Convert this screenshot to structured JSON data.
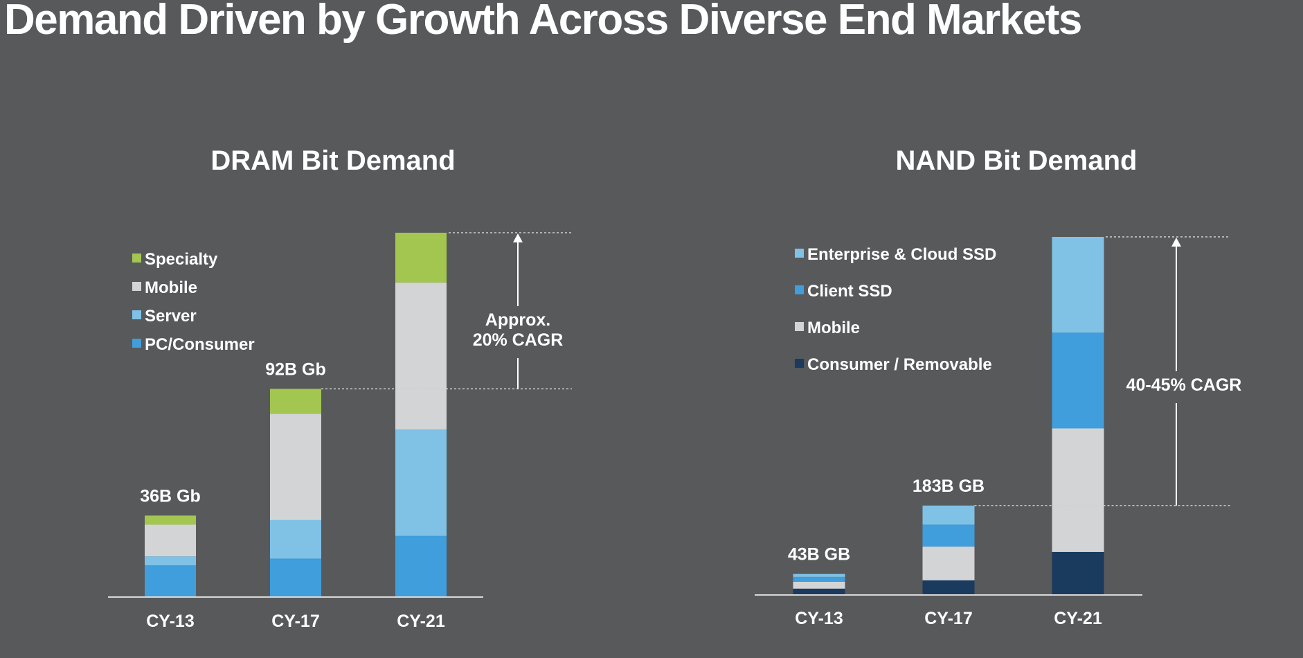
{
  "slide": {
    "title": "Demand Driven by Growth Across Diverse End Markets"
  },
  "colors": {
    "background": "#58595b",
    "specialty": "#a3c651",
    "mobile": "#d3d4d6",
    "server": "#7fc2e6",
    "pc_consumer": "#3f9edb",
    "enterprise_cloud_ssd": "#7fc2e6",
    "client_ssd": "#3f9edb",
    "consumer_removable": "#1a3a5e"
  },
  "chart_data": [
    {
      "id": "dram",
      "type": "bar",
      "stacked": true,
      "title": "DRAM Bit Demand",
      "categories": [
        "CY-13",
        "CY-17",
        "CY-21"
      ],
      "series": [
        {
          "name": "PC/Consumer",
          "color": "#3f9edb",
          "values": [
            14,
            17,
            27
          ]
        },
        {
          "name": "Server",
          "color": "#7fc2e6",
          "values": [
            4,
            17,
            47
          ]
        },
        {
          "name": "Mobile",
          "color": "#d3d4d6",
          "values": [
            14,
            47,
            65
          ]
        },
        {
          "name": "Specialty",
          "color": "#a3c651",
          "values": [
            4,
            11,
            22
          ]
        }
      ],
      "totals": [
        36,
        92,
        161
      ],
      "total_labels": [
        "36B Gb",
        "92B Gb",
        ""
      ],
      "legend": [
        "Specialty",
        "Mobile",
        "Server",
        "PC/Consumer"
      ],
      "legend_position": "top-left",
      "annotation": {
        "lines": [
          "Approx.",
          "20% CAGR"
        ],
        "from": 92,
        "to": 161
      },
      "ylim": [
        0,
        161
      ],
      "xlabel": "",
      "ylabel": "",
      "grid": false
    },
    {
      "id": "nand",
      "type": "bar",
      "stacked": true,
      "title": "NAND Bit Demand",
      "categories": [
        "CY-13",
        "CY-17",
        "CY-21"
      ],
      "series": [
        {
          "name": "Consumer / Removable",
          "color": "#1a3a5e",
          "values": [
            13,
            30,
            88
          ]
        },
        {
          "name": "Mobile",
          "color": "#d3d4d6",
          "values": [
            14,
            69,
            253
          ]
        },
        {
          "name": "Client SSD",
          "color": "#3f9edb",
          "values": [
            10,
            45,
            196
          ]
        },
        {
          "name": "Enterprise & Cloud SSD",
          "color": "#7fc2e6",
          "values": [
            6,
            39,
            196
          ]
        }
      ],
      "totals": [
        43,
        183,
        733
      ],
      "total_labels": [
        "43B GB",
        "183B GB",
        ""
      ],
      "legend": [
        "Enterprise & Cloud SSD",
        "Client SSD",
        "Mobile",
        "Consumer / Removable"
      ],
      "legend_position": "top-left",
      "annotation": {
        "lines": [
          "40-45% CAGR"
        ],
        "from": 183,
        "to": 733
      },
      "ylim": [
        0,
        733
      ],
      "xlabel": "",
      "ylabel": "",
      "grid": false
    }
  ]
}
